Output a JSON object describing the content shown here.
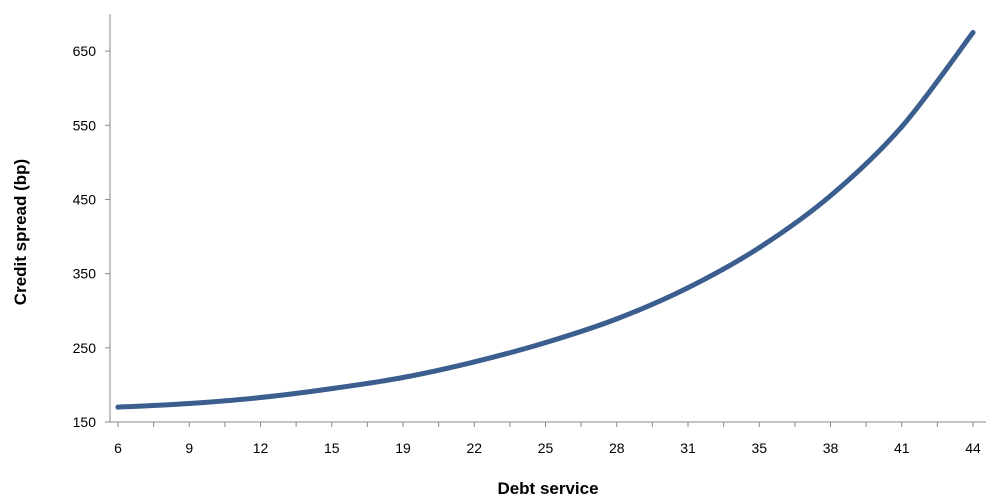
{
  "chart_data": {
    "type": "line",
    "title": "",
    "xlabel": "Debt service",
    "ylabel": "Credit spread (bp)",
    "x_tick_labels": [
      "6",
      "9",
      "12",
      "15",
      "19",
      "22",
      "25",
      "28",
      "31",
      "35",
      "38",
      "41",
      "44"
    ],
    "yticks": [
      150,
      250,
      350,
      450,
      550,
      650
    ],
    "ylim": [
      150,
      700
    ],
    "grid": false,
    "legend": "none",
    "series": [
      {
        "color": "#3B5E8F",
        "x": [
          6,
          9,
          12,
          15,
          19,
          22,
          25,
          28,
          31,
          35,
          38,
          41,
          44
        ],
        "y": [
          170,
          175,
          183,
          195,
          210,
          231,
          257,
          289,
          331,
          385,
          455,
          548,
          675
        ]
      }
    ]
  }
}
